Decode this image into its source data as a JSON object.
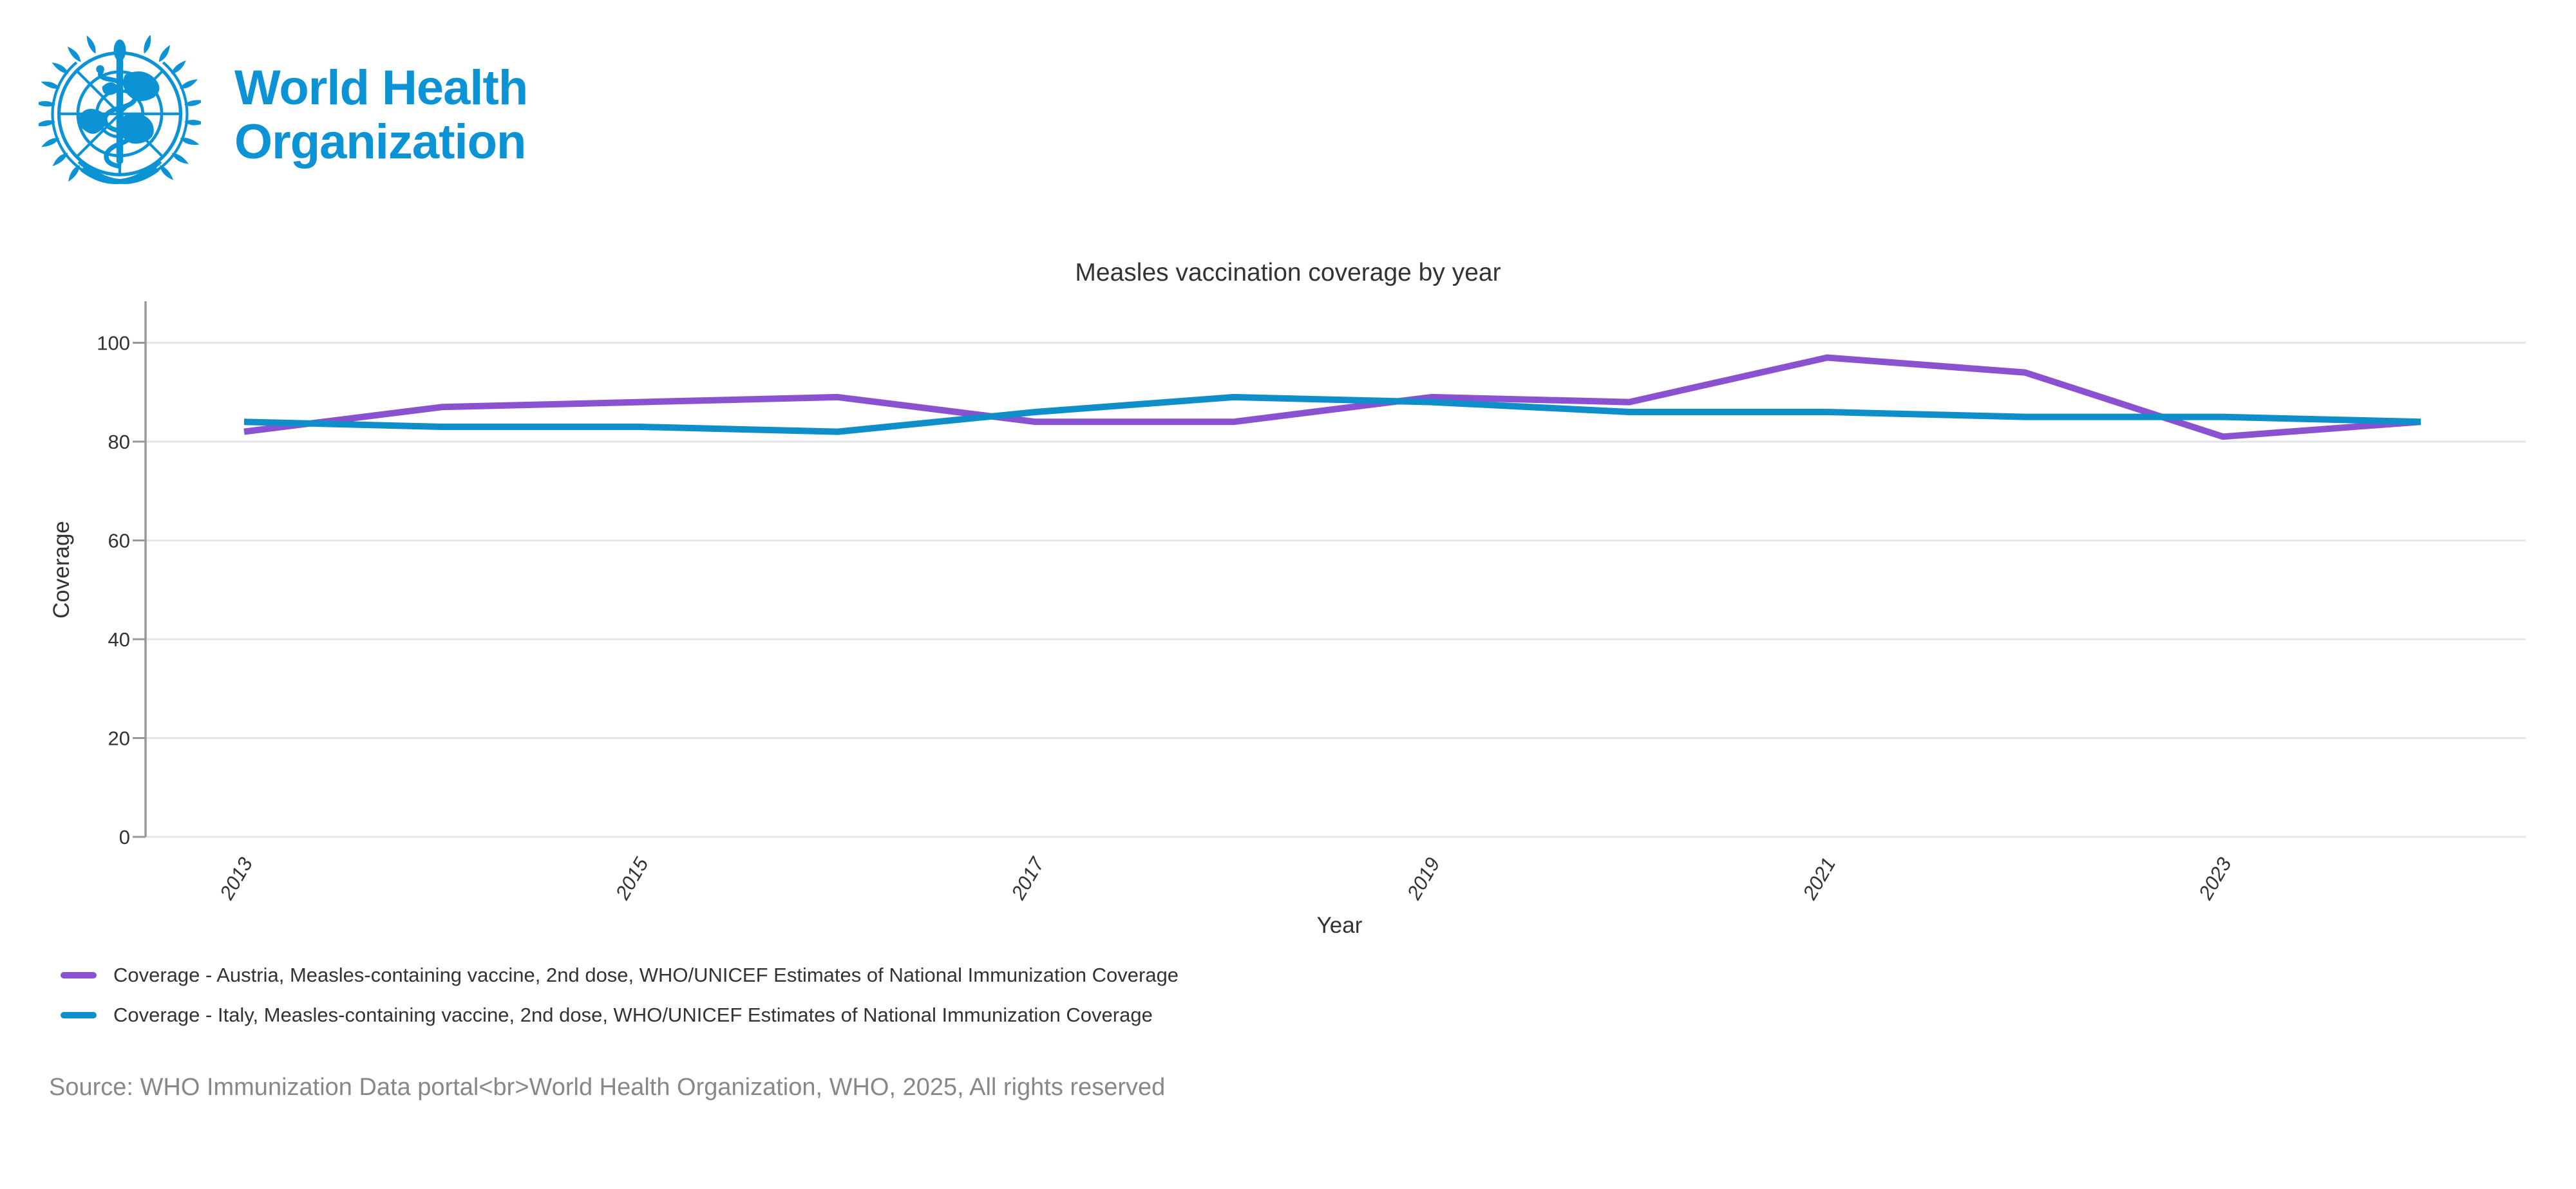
{
  "logo": {
    "line1": "World Health",
    "line2": "Organization"
  },
  "colors": {
    "who_blue": "#0b93d5",
    "grid": "#e6e6e6",
    "axis_line": "#999999",
    "tick_text": "#333333",
    "muted_text": "#888888"
  },
  "chart_data": {
    "type": "line",
    "title": "Measles vaccination coverage by year",
    "xlabel": "Year",
    "ylabel": "Coverage",
    "x": [
      2013,
      2014,
      2015,
      2016,
      2017,
      2018,
      2019,
      2020,
      2021,
      2022,
      2023,
      2024
    ],
    "x_tick_labels": [
      2013,
      2015,
      2017,
      2019,
      2021,
      2023
    ],
    "ylim": [
      0,
      100
    ],
    "y_ticks": [
      0,
      20,
      40,
      60,
      80,
      100
    ],
    "grid": true,
    "legend_position": "bottom-left",
    "series": [
      {
        "name": "Coverage - Austria, Measles-containing vaccine, 2nd dose, WHO/UNICEF Estimates of National Immunization Coverage",
        "color": "#8a52d1",
        "values": [
          82,
          87,
          88,
          89,
          84,
          84,
          89,
          88,
          97,
          94,
          81,
          84
        ]
      },
      {
        "name": "Coverage - Italy, Measles-containing vaccine, 2nd dose, WHO/UNICEF Estimates of National Immunization Coverage",
        "color": "#0e8fc9",
        "values": [
          84,
          83,
          83,
          82,
          86,
          89,
          88,
          86,
          86,
          85,
          85,
          84
        ]
      }
    ]
  },
  "source": {
    "text": "Source: WHO Immunization Data portal<br>World Health Organization, WHO, 2025, All rights reserved"
  }
}
